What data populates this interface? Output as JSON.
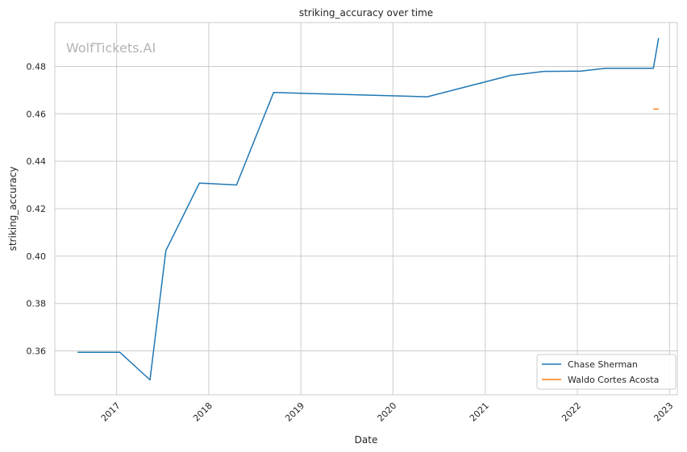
{
  "chart_data": {
    "type": "line",
    "title": "striking_accuracy over time",
    "xlabel": "Date",
    "ylabel": "striking_accuracy",
    "watermark": "WolfTickets.AI",
    "xlim": [
      "2016-05-01",
      "2023-02-01"
    ],
    "ylim": [
      0.3415,
      0.4985
    ],
    "x_ticks": [
      "2017",
      "2018",
      "2019",
      "2020",
      "2021",
      "2022",
      "2023"
    ],
    "y_ticks": [
      "0.36",
      "0.38",
      "0.40",
      "0.42",
      "0.44",
      "0.46",
      "0.48"
    ],
    "grid": true,
    "legend_position": "lower-right",
    "series": [
      {
        "name": "Chase Sherman",
        "color": "#1f77b4",
        "points": [
          {
            "x": "2016-07-30",
            "y": 0.3594
          },
          {
            "x": "2017-01-14",
            "y": 0.3594
          },
          {
            "x": "2017-05-13",
            "y": 0.3478
          },
          {
            "x": "2017-07-15",
            "y": 0.4023
          },
          {
            "x": "2017-11-25",
            "y": 0.4308
          },
          {
            "x": "2018-04-21",
            "y": 0.43
          },
          {
            "x": "2018-09-15",
            "y": 0.469
          },
          {
            "x": "2020-05-16",
            "y": 0.4672
          },
          {
            "x": "2021-04-10",
            "y": 0.4762
          },
          {
            "x": "2021-08-21",
            "y": 0.4779
          },
          {
            "x": "2022-01-15",
            "y": 0.478
          },
          {
            "x": "2022-04-23",
            "y": 0.4792
          },
          {
            "x": "2022-10-29",
            "y": 0.4792
          },
          {
            "x": "2022-11-19",
            "y": 0.492
          }
        ]
      },
      {
        "name": "Waldo Cortes Acosta",
        "color": "#ff7f0e",
        "points": [
          {
            "x": "2022-10-29",
            "y": 0.462
          },
          {
            "x": "2022-11-19",
            "y": 0.462
          }
        ]
      }
    ]
  }
}
